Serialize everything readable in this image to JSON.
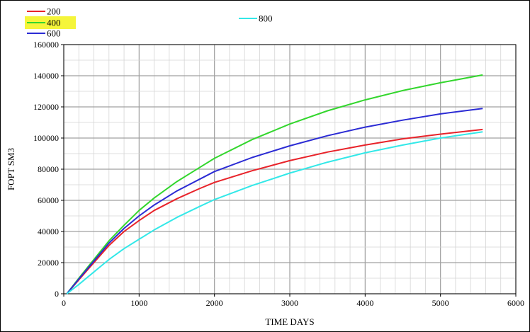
{
  "chart_data": {
    "type": "line",
    "title": "",
    "xlabel": "TIME DAYS",
    "ylabel": "FOPT SM3",
    "xlim": [
      0,
      6000
    ],
    "ylim": [
      0,
      160000
    ],
    "x_ticks": [
      0,
      1000,
      2000,
      3000,
      4000,
      5000,
      6000
    ],
    "y_ticks": [
      0,
      20000,
      40000,
      60000,
      80000,
      100000,
      120000,
      140000,
      160000
    ],
    "grid": true,
    "legend_position": "top-left",
    "series": [
      {
        "name": "200",
        "color": "#e8232a",
        "highlighted": false,
        "points": [
          [
            40,
            0
          ],
          [
            200,
            9000
          ],
          [
            400,
            20000
          ],
          [
            600,
            31000
          ],
          [
            800,
            40000
          ],
          [
            1000,
            47000
          ],
          [
            1200,
            53500
          ],
          [
            1500,
            61000
          ],
          [
            1800,
            67500
          ],
          [
            2000,
            71500
          ],
          [
            2500,
            79000
          ],
          [
            3000,
            85500
          ],
          [
            3500,
            91000
          ],
          [
            4000,
            95500
          ],
          [
            4500,
            99500
          ],
          [
            5000,
            102500
          ],
          [
            5560,
            105500
          ]
        ]
      },
      {
        "name": "400",
        "color": "#33d62d",
        "highlighted": true,
        "points": [
          [
            40,
            0
          ],
          [
            200,
            10000
          ],
          [
            400,
            22000
          ],
          [
            600,
            34000
          ],
          [
            800,
            44000
          ],
          [
            1000,
            53500
          ],
          [
            1200,
            61500
          ],
          [
            1500,
            72000
          ],
          [
            1800,
            81000
          ],
          [
            2000,
            87000
          ],
          [
            2500,
            99000
          ],
          [
            3000,
            109000
          ],
          [
            3500,
            117500
          ],
          [
            4000,
            124500
          ],
          [
            4500,
            130500
          ],
          [
            5000,
            135500
          ],
          [
            5560,
            140500
          ]
        ]
      },
      {
        "name": "600",
        "color": "#2b2bd4",
        "highlighted": false,
        "points": [
          [
            40,
            0
          ],
          [
            200,
            9500
          ],
          [
            400,
            21000
          ],
          [
            600,
            32500
          ],
          [
            800,
            42000
          ],
          [
            1000,
            50000
          ],
          [
            1200,
            57000
          ],
          [
            1500,
            66000
          ],
          [
            1800,
            73500
          ],
          [
            2000,
            78500
          ],
          [
            2500,
            87500
          ],
          [
            3000,
            95000
          ],
          [
            3500,
            101500
          ],
          [
            4000,
            107000
          ],
          [
            4500,
            111500
          ],
          [
            5000,
            115500
          ],
          [
            5560,
            119000
          ]
        ]
      },
      {
        "name": "800",
        "color": "#33e8e8",
        "highlighted": false,
        "points": [
          [
            40,
            0
          ],
          [
            200,
            6000
          ],
          [
            400,
            14000
          ],
          [
            600,
            22000
          ],
          [
            800,
            29000
          ],
          [
            1000,
            35000
          ],
          [
            1200,
            41000
          ],
          [
            1500,
            49000
          ],
          [
            1800,
            56000
          ],
          [
            2000,
            60500
          ],
          [
            2500,
            69500
          ],
          [
            3000,
            77500
          ],
          [
            3500,
            84500
          ],
          [
            4000,
            90500
          ],
          [
            4500,
            95500
          ],
          [
            5000,
            100000
          ],
          [
            5560,
            104000
          ]
        ]
      }
    ]
  }
}
